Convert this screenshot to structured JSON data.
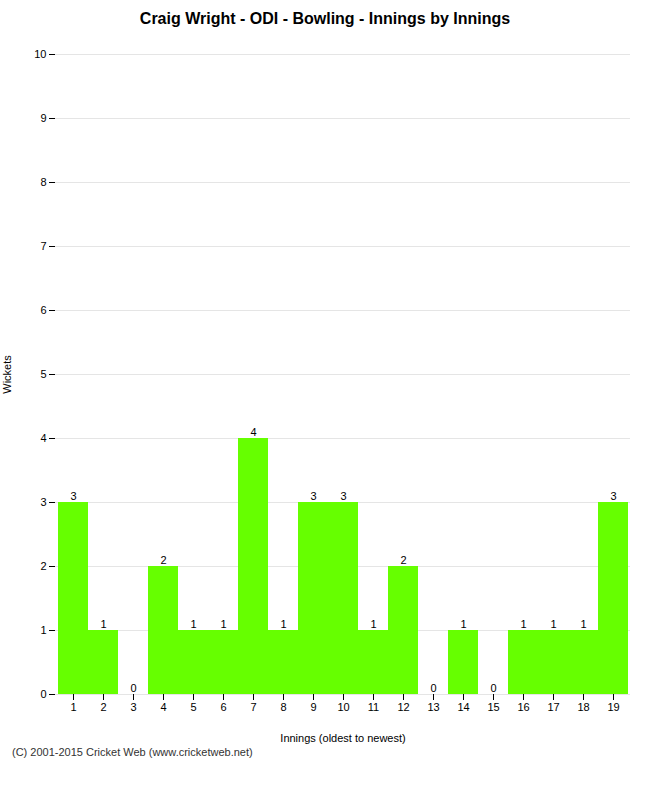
{
  "chart_data": {
    "type": "bar",
    "title": "Craig Wright - ODI - Bowling - Innings by Innings",
    "xlabel": "Innings (oldest to newest)",
    "ylabel": "Wickets",
    "categories": [
      "1",
      "2",
      "3",
      "4",
      "5",
      "6",
      "7",
      "8",
      "9",
      "10",
      "11",
      "12",
      "13",
      "14",
      "15",
      "16",
      "17",
      "18",
      "19"
    ],
    "values": [
      3,
      1,
      0,
      2,
      1,
      1,
      4,
      1,
      3,
      3,
      1,
      2,
      0,
      1,
      0,
      1,
      1,
      1,
      3
    ],
    "color": "#66ff00",
    "ylim": [
      0,
      10
    ],
    "yticks": [
      0,
      1,
      2,
      3,
      4,
      5,
      6,
      7,
      8,
      9,
      10
    ],
    "grid": true,
    "data_labels": true,
    "caption": "(C) 2001-2015 Cricket Web (www.cricketweb.net)"
  }
}
